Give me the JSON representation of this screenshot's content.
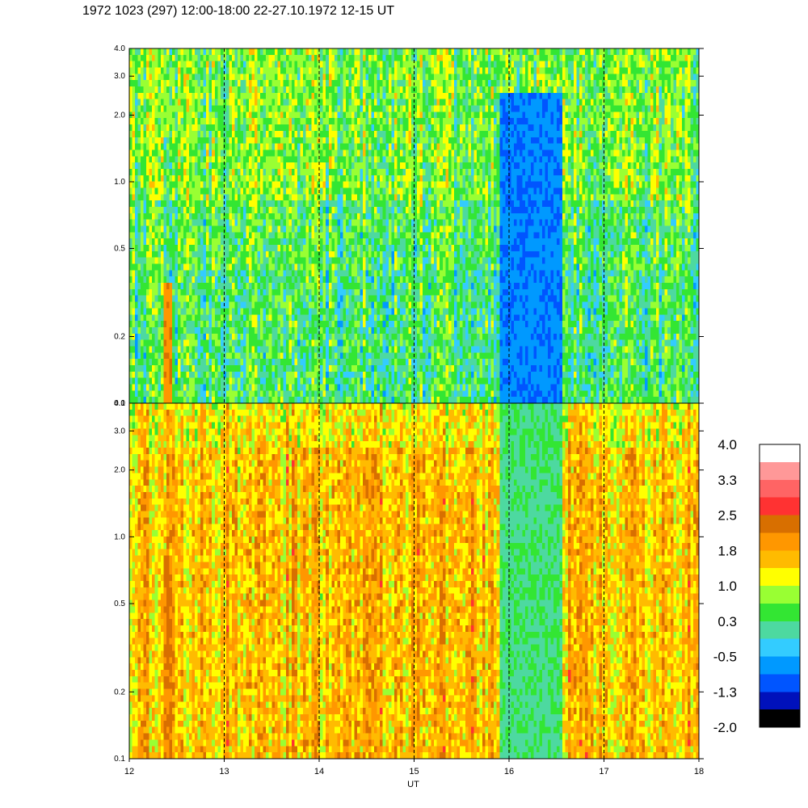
{
  "title": "1972 1023 (297) 12:00-18:00 22-27.10.1972  12-15 UT",
  "chart_data": {
    "type": "heatmap",
    "title": "1972 1023 (297) 12:00-18:00 22-27.10.1972  12-15 UT",
    "xlabel": "UT",
    "x_ticks": [
      "12",
      "13",
      "14",
      "15",
      "16",
      "17",
      "18"
    ],
    "xlim": [
      12,
      18
    ],
    "y_scale": "log",
    "panels": [
      {
        "id": "upper",
        "ylim": [
          0.1,
          4.0
        ],
        "y_ticks": [
          "0.1",
          "0.2",
          "0.5",
          "1.0",
          "2.0",
          "3.0",
          "4.0"
        ],
        "y_tick_values": [
          0.1,
          0.2,
          0.5,
          1.0,
          2.0,
          3.0,
          4.0
        ],
        "background_mean": 0.4,
        "features": [
          {
            "x_start": 12.36,
            "x_end": 12.46,
            "y_max": 0.35,
            "value": 2.0
          },
          {
            "x_start": 15.9,
            "x_end": 16.55,
            "y_max": 0.7,
            "value": -1.6
          },
          {
            "x_start": 15.9,
            "x_end": 16.55,
            "y_max": 2.5,
            "value": -0.8
          }
        ]
      },
      {
        "id": "lower",
        "ylim": [
          0.1,
          4.0
        ],
        "y_ticks": [
          "0.1",
          "0.2",
          "0.5",
          "1.0",
          "2.0",
          "3.0",
          "4.0"
        ],
        "y_tick_values": [
          0.1,
          0.2,
          0.5,
          1.0,
          2.0,
          3.0,
          4.0
        ],
        "background_mean": 1.6,
        "features": [
          {
            "x_start": 12.36,
            "x_end": 12.46,
            "y_max": 0.35,
            "value": 2.9
          },
          {
            "x_start": 12.36,
            "x_end": 12.46,
            "y_max": 0.8,
            "value": 2.2
          },
          {
            "x_start": 15.9,
            "x_end": 16.55,
            "y_max": 4.0,
            "value": 0.2
          }
        ]
      }
    ],
    "dashed_lines_x": [
      13,
      14,
      15,
      16,
      17
    ],
    "colorbar": {
      "labels": [
        "4.0",
        "3.3",
        "2.5",
        "1.8",
        "1.0",
        "0.3",
        "-0.5",
        "-1.3",
        "-2.0"
      ],
      "colors": [
        "#ffffff",
        "#ff9898",
        "#ff6464",
        "#ff3232",
        "#d86f00",
        "#ff9700",
        "#ffbb00",
        "#ffff00",
        "#99ff33",
        "#33e633",
        "#4dd9a0",
        "#33ccff",
        "#0099ff",
        "#0055ff",
        "#0011bb",
        "#000000"
      ]
    }
  }
}
